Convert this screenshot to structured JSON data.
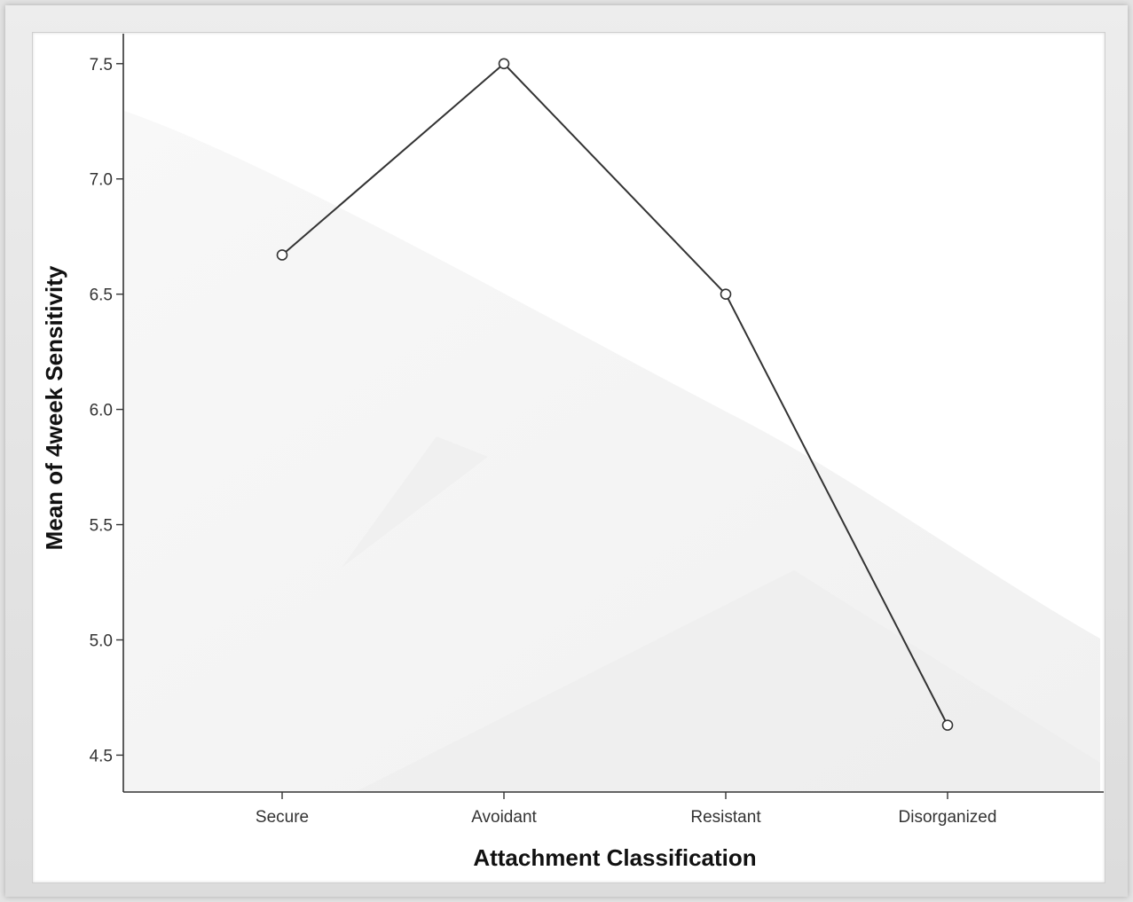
{
  "chart_data": {
    "type": "line",
    "title": "",
    "xlabel": "Attachment Classification",
    "ylabel": "Mean of 4week Sensitivity",
    "categories": [
      "Secure",
      "Avoidant",
      "Resistant",
      "Disorganized"
    ],
    "series": [
      {
        "values": [
          6.67,
          7.5,
          6.5,
          4.63
        ]
      }
    ],
    "ylim": [
      4.34,
      7.63
    ],
    "yticks": [
      4.5,
      5.0,
      5.5,
      6.0,
      6.5,
      7.0,
      7.5
    ],
    "ytick_labels": [
      "4.5",
      "5.0",
      "5.5",
      "6.0",
      "6.5",
      "7.0",
      "7.5"
    ],
    "grid": false,
    "marker": "open-circle",
    "line_color": "#333333"
  }
}
